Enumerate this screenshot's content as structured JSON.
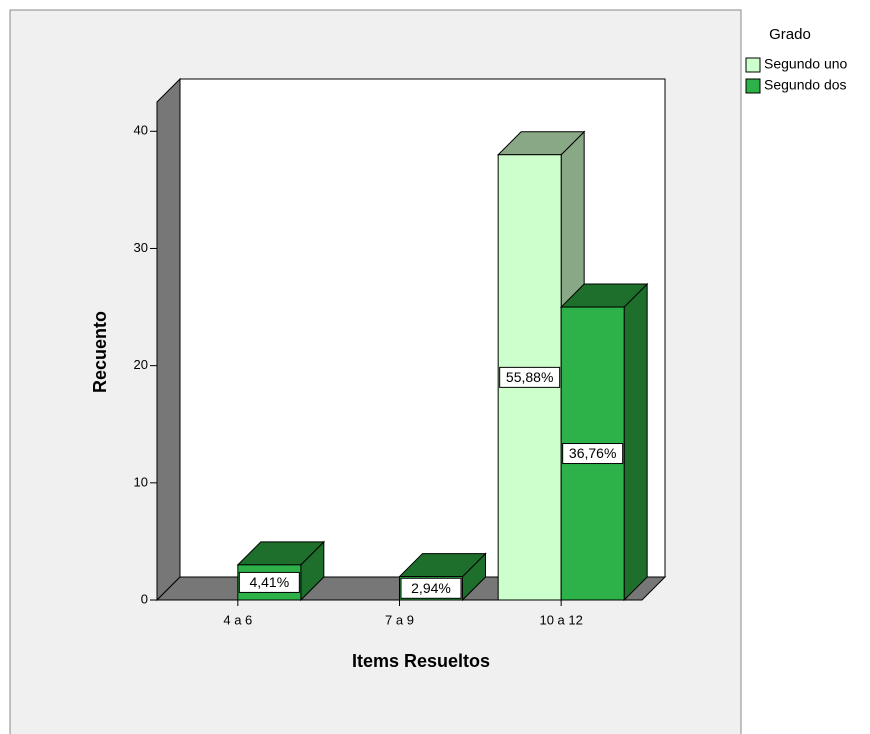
{
  "chart_data": {
    "type": "bar3d",
    "x_label": "Items Resueltos",
    "y_label": "Recuento",
    "legend_title": "Grado",
    "legend": "right",
    "categories": [
      "4 a 6",
      "7 a 9",
      "10 a 12"
    ],
    "series": [
      {
        "name": "Segundo uno",
        "color": "#ccffcc",
        "shade": "#88a886",
        "values": [
          null,
          null,
          38
        ],
        "percents": [
          null,
          null,
          55.88
        ],
        "percent_labels": [
          null,
          null,
          "55,88%"
        ]
      },
      {
        "name": "Segundo dos",
        "color": "#2db24a",
        "shade": "#1e6e2c",
        "values": [
          3,
          2,
          25
        ],
        "percents": [
          4.41,
          2.94,
          36.76
        ],
        "percent_labels": [
          "4,41%",
          "2,94%",
          "36,76%"
        ]
      }
    ],
    "ylim": [
      0,
      42.5
    ],
    "yticks": [
      0,
      10,
      20,
      30,
      40
    ]
  }
}
